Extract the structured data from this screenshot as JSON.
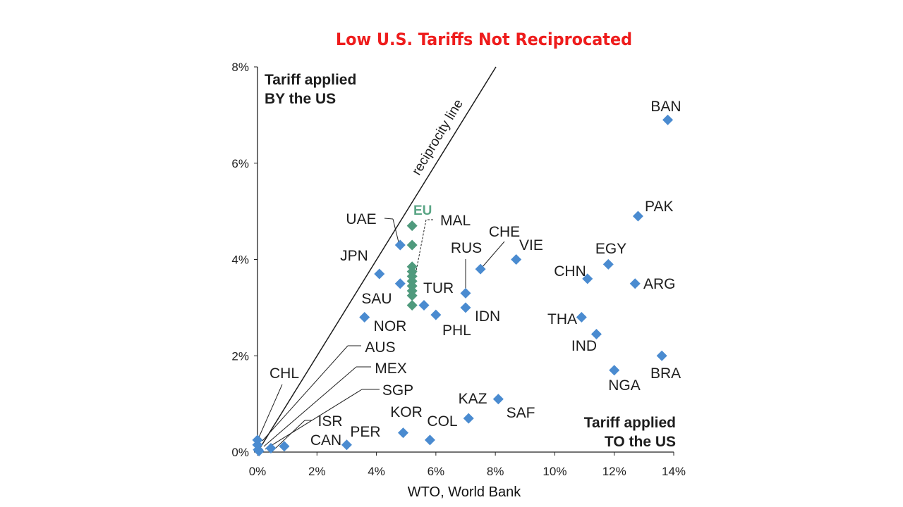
{
  "title": "Low U.S. Tariffs Not Reciprocated",
  "source": "WTO, World Bank",
  "colors": {
    "title": "#ee1c1c",
    "point": "#4a8bd0",
    "eu_point": "#4f9a7d",
    "eu_label": "#5aa585",
    "axis": "#222222"
  },
  "chart_data": {
    "type": "scatter",
    "title": "Low U.S. Tariffs Not Reciprocated",
    "xlabel": "Tariff applied TO the US",
    "ylabel": "Tariff applied BY the US",
    "xlim": [
      0,
      14
    ],
    "ylim": [
      0,
      8
    ],
    "x_ticks": [
      "0%",
      "2%",
      "4%",
      "6%",
      "8%",
      "10%",
      "12%",
      "14%"
    ],
    "y_ticks": [
      "0%",
      "2%",
      "4%",
      "6%",
      "8%"
    ],
    "grid": false,
    "reference_line": {
      "label": "reciprocity line",
      "slope": 1
    },
    "points": [
      {
        "label": "BAN",
        "x": 13.8,
        "y": 6.9
      },
      {
        "label": "PAK",
        "x": 12.8,
        "y": 4.9
      },
      {
        "label": "EGY",
        "x": 11.8,
        "y": 3.9
      },
      {
        "label": "ARG",
        "x": 12.7,
        "y": 3.5
      },
      {
        "label": "CHN",
        "x": 11.1,
        "y": 3.6
      },
      {
        "label": "THA",
        "x": 10.9,
        "y": 2.8
      },
      {
        "label": "IND",
        "x": 11.4,
        "y": 2.45
      },
      {
        "label": "BRA",
        "x": 13.6,
        "y": 2.0
      },
      {
        "label": "NGA",
        "x": 12.0,
        "y": 1.7
      },
      {
        "label": "VIE",
        "x": 8.7,
        "y": 4.0
      },
      {
        "label": "CHE",
        "x": 7.5,
        "y": 3.8
      },
      {
        "label": "RUS",
        "x": 7.0,
        "y": 3.3
      },
      {
        "label": "IDN",
        "x": 7.0,
        "y": 3.0
      },
      {
        "label": "PHL",
        "x": 6.0,
        "y": 2.85
      },
      {
        "label": "TUR",
        "x": 5.6,
        "y": 3.05
      },
      {
        "label": "UAE",
        "x": 4.8,
        "y": 4.3
      },
      {
        "label": "JPN",
        "x": 4.1,
        "y": 3.7
      },
      {
        "label": "SAU",
        "x": 4.8,
        "y": 3.5
      },
      {
        "label": "NOR",
        "x": 3.6,
        "y": 2.8
      },
      {
        "label": "KAZ",
        "x": 8.1,
        "y": 1.1
      },
      {
        "label": "SAF",
        "x": 7.1,
        "y": 0.7
      },
      {
        "label": "KOR",
        "x": 4.9,
        "y": 0.4
      },
      {
        "label": "COL",
        "x": 5.8,
        "y": 0.25
      },
      {
        "label": "PER",
        "x": 3.0,
        "y": 0.15
      },
      {
        "label": "CAN",
        "x": 0.9,
        "y": 0.12
      },
      {
        "label": "ISR",
        "x": 0.45,
        "y": 0.08
      },
      {
        "label": "SGP",
        "x": 0.05,
        "y": 0.02
      },
      {
        "label": "MEX",
        "x": 0.02,
        "y": 0.05
      },
      {
        "label": "AUS",
        "x": 0.0,
        "y": 0.15
      },
      {
        "label": "CHL",
        "x": 0.0,
        "y": 0.25
      }
    ],
    "eu": {
      "label": "EU",
      "member_label": "MAL",
      "points": [
        {
          "x": 5.2,
          "y": 4.7
        },
        {
          "x": 5.2,
          "y": 4.3
        },
        {
          "x": 5.2,
          "y": 3.85
        },
        {
          "x": 5.2,
          "y": 3.75
        },
        {
          "x": 5.2,
          "y": 3.65
        },
        {
          "x": 5.2,
          "y": 3.55
        },
        {
          "x": 5.2,
          "y": 3.45
        },
        {
          "x": 5.2,
          "y": 3.35
        },
        {
          "x": 5.2,
          "y": 3.25
        },
        {
          "x": 5.2,
          "y": 3.05
        }
      ]
    }
  }
}
